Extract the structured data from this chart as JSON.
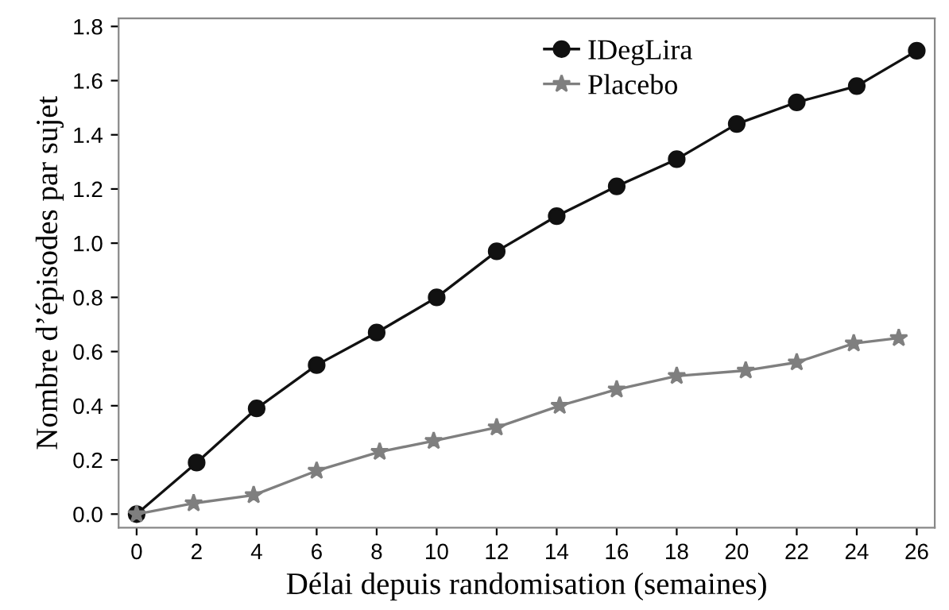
{
  "chart_data": {
    "type": "line",
    "xlabel": "Délai depuis randomisation (semaines)",
    "ylabel": "Nombre d’épisodes par sujet",
    "xlim": [
      -0.6,
      26.6
    ],
    "ylim": [
      -0.05,
      1.83
    ],
    "xticks": [
      0,
      2,
      4,
      6,
      8,
      10,
      12,
      14,
      16,
      18,
      20,
      22,
      24,
      26
    ],
    "yticks": [
      {
        "value": 0,
        "label": "0.0"
      },
      {
        "value": 0.2,
        "label": "0.2"
      },
      {
        "value": 0.4,
        "label": "0.4"
      },
      {
        "value": 0.6,
        "label": "0.6"
      },
      {
        "value": 0.8,
        "label": "0.8"
      },
      {
        "value": 1.0,
        "label": "1.0"
      },
      {
        "value": 1.2,
        "label": "1.2"
      },
      {
        "value": 1.4,
        "label": "1.4"
      },
      {
        "value": 1.6,
        "label": "1.6"
      },
      {
        "value": 1.8,
        "label": "1.8"
      }
    ],
    "grid": false,
    "legend": "top right",
    "series": [
      {
        "name": "IDegLira",
        "color": "#111111",
        "marker": "circle",
        "x": [
          0,
          2,
          4,
          6,
          8,
          10,
          12,
          14,
          16,
          18,
          20,
          22,
          24,
          26
        ],
        "values": [
          0,
          0.19,
          0.39,
          0.55,
          0.67,
          0.8,
          0.97,
          1.1,
          1.21,
          1.31,
          1.44,
          1.52,
          1.58,
          1.71
        ]
      },
      {
        "name": "Placebo",
        "color": "#7f7f7f",
        "marker": "star",
        "x": [
          0,
          1.9,
          3.9,
          6,
          8.1,
          9.9,
          12,
          14.1,
          16,
          18,
          20.3,
          22,
          23.9,
          25.4
        ],
        "values": [
          0,
          0.04,
          0.07,
          0.16,
          0.23,
          0.27,
          0.32,
          0.4,
          0.46,
          0.51,
          0.53,
          0.56,
          0.63,
          0.65
        ]
      }
    ]
  }
}
